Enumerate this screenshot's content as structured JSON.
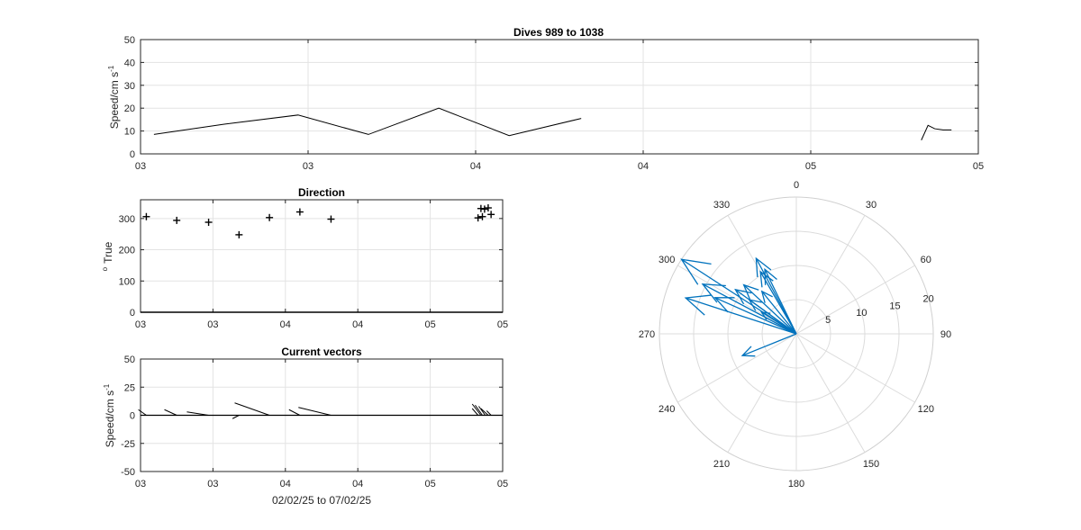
{
  "chart_data": [
    {
      "id": "speed",
      "type": "line",
      "title": "Dives 989 to 1038",
      "ylabel": "Speed/cm s",
      "ylabel_exp": "-1",
      "xlabel": "",
      "ylim": [
        0,
        50
      ],
      "yticks": [
        "0",
        "10",
        "20",
        "30",
        "40",
        "50"
      ],
      "xlim": [
        0,
        5
      ],
      "xticks": [
        "03",
        "03",
        "04",
        "04",
        "05",
        "05"
      ],
      "grid": true,
      "series": [
        {
          "x": [
            0.08,
            0.5,
            0.94,
            1.36,
            1.78,
            2.2,
            2.63
          ],
          "y": [
            8.5,
            13,
            17,
            8.5,
            20,
            8,
            15.5
          ]
        },
        {
          "x": [
            4.66,
            4.7,
            4.74,
            4.79,
            4.84
          ],
          "y": [
            6,
            12.5,
            11,
            10.5,
            10.5
          ]
        }
      ]
    },
    {
      "id": "direction",
      "type": "scatter",
      "title": "Direction",
      "ylabel": "True",
      "ylabel_prefix": "o",
      "xlabel": "",
      "ylim": [
        0,
        360
      ],
      "yticks": [
        "0",
        "100",
        "200",
        "300"
      ],
      "yticks_values": [
        0,
        100,
        200,
        300
      ],
      "xlim": [
        0,
        5
      ],
      "xticks": [
        "03",
        "03",
        "04",
        "04",
        "05",
        "05"
      ],
      "grid": true,
      "marker": "+",
      "points": {
        "x": [
          0.08,
          0.5,
          0.94,
          1.36,
          1.78,
          2.2,
          2.63,
          4.66,
          4.7,
          4.72,
          4.75,
          4.8,
          4.84
        ],
        "y": [
          306,
          294,
          288,
          248,
          303,
          321,
          298,
          302,
          332,
          306,
          330,
          334,
          313
        ]
      }
    },
    {
      "id": "vectors",
      "type": "quiver",
      "title": "Current vectors",
      "ylabel": "Speed/cm s",
      "ylabel_exp": "-1",
      "xlabel": "02/02/25 to 07/02/25",
      "ylim": [
        -50,
        50
      ],
      "yticks": [
        "-50",
        "-25",
        "0",
        "25",
        "50"
      ],
      "yticks_values": [
        -50,
        -25,
        0,
        25,
        50
      ],
      "xlim": [
        0,
        5
      ],
      "xticks": [
        "03",
        "03",
        "04",
        "04",
        "05",
        "05"
      ],
      "grid": true,
      "vectors": [
        {
          "x": 0.08,
          "dx": -0.11,
          "dy": 5
        },
        {
          "x": 0.5,
          "dx": -0.17,
          "dy": 5
        },
        {
          "x": 0.94,
          "dx": -0.3,
          "dy": 3
        },
        {
          "x": 1.36,
          "dx": -0.09,
          "dy": -3
        },
        {
          "x": 1.78,
          "dx": -0.48,
          "dy": 11
        },
        {
          "x": 2.2,
          "dx": -0.15,
          "dy": 5
        },
        {
          "x": 2.63,
          "dx": -0.45,
          "dy": 7
        },
        {
          "x": 4.66,
          "dx": -0.08,
          "dy": 6
        },
        {
          "x": 4.7,
          "dx": -0.12,
          "dy": 10
        },
        {
          "x": 4.72,
          "dx": -0.1,
          "dy": 9
        },
        {
          "x": 4.76,
          "dx": -0.09,
          "dy": 8
        },
        {
          "x": 4.8,
          "dx": -0.1,
          "dy": 6
        },
        {
          "x": 4.84,
          "dx": -0.06,
          "dy": 4
        }
      ]
    },
    {
      "id": "compass",
      "type": "polar",
      "title": "",
      "rlim": [
        0,
        20
      ],
      "rticks": [
        "5",
        "10",
        "15",
        "20"
      ],
      "rticks_values": [
        5,
        10,
        15,
        20
      ],
      "theta_labels": [
        "0",
        "30",
        "60",
        "90",
        "120",
        "150",
        "180",
        "210",
        "240",
        "270",
        "300",
        "330"
      ],
      "theta_values": [
        0,
        30,
        60,
        90,
        120,
        150,
        180,
        210,
        240,
        270,
        300,
        330
      ],
      "color": "#0072BD",
      "vectors": [
        {
          "speed": 8.5,
          "dir": 306
        },
        {
          "speed": 13,
          "dir": 294
        },
        {
          "speed": 17,
          "dir": 288
        },
        {
          "speed": 8.5,
          "dir": 248
        },
        {
          "speed": 20,
          "dir": 303
        },
        {
          "speed": 8,
          "dir": 321
        },
        {
          "speed": 15.5,
          "dir": 298
        },
        {
          "speed": 6,
          "dir": 302
        },
        {
          "speed": 12.5,
          "dir": 332
        },
        {
          "speed": 11,
          "dir": 306
        },
        {
          "speed": 10.5,
          "dir": 330
        },
        {
          "speed": 10.5,
          "dir": 334
        },
        {
          "speed": 10.5,
          "dir": 313
        }
      ]
    }
  ]
}
